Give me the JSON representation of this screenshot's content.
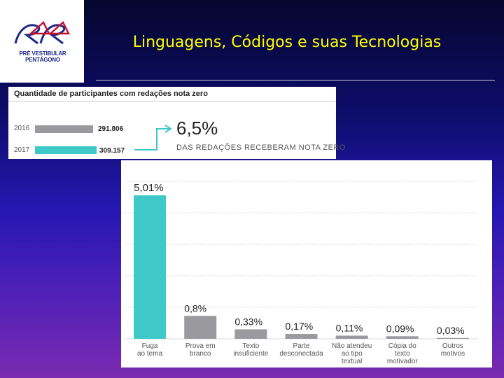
{
  "header": {
    "title": "Linguagens, Códigos e suas Tecnologias",
    "logo_text": "PRÉ VESTIBULAR PENTÁGONO"
  },
  "summary": {
    "title": "Quantidade de participantes com redações nota zero",
    "rows": [
      {
        "year": "2016",
        "value_label": "291.806",
        "value": 291806,
        "color": "#9a9a9e"
      },
      {
        "year": "2017",
        "value_label": "309.157",
        "value": 309157,
        "color": "#3ec8c8"
      }
    ],
    "highlight_value": "6,5%",
    "highlight_caption": "DAS REDAÇÕES RECEBERAM NOTA ZERO"
  },
  "chart_data": {
    "type": "bar",
    "categories": [
      [
        "Fuga",
        "ao tema"
      ],
      [
        "Prova em",
        "branco"
      ],
      [
        "Texto",
        "insuficiente"
      ],
      [
        "Parte",
        "desconectada"
      ],
      [
        "Não atendeu",
        "ao tipo",
        "textual"
      ],
      [
        "Cópia do",
        "texto",
        "motivador"
      ],
      [
        "Outros",
        "motivos"
      ]
    ],
    "values": [
      5.01,
      0.8,
      0.33,
      0.17,
      0.11,
      0.09,
      0.03
    ],
    "value_labels": [
      "5,01%",
      "0,8%",
      "0,33%",
      "0,17%",
      "0,11%",
      "0,09%",
      "0,03%"
    ],
    "colors": [
      "#3ec8c8",
      "#9a9a9e",
      "#9a9a9e",
      "#9a9a9e",
      "#9a9a9e",
      "#9a9a9e",
      "#9a9a9e"
    ],
    "ylim": [
      0,
      5.5
    ],
    "grid": true
  }
}
